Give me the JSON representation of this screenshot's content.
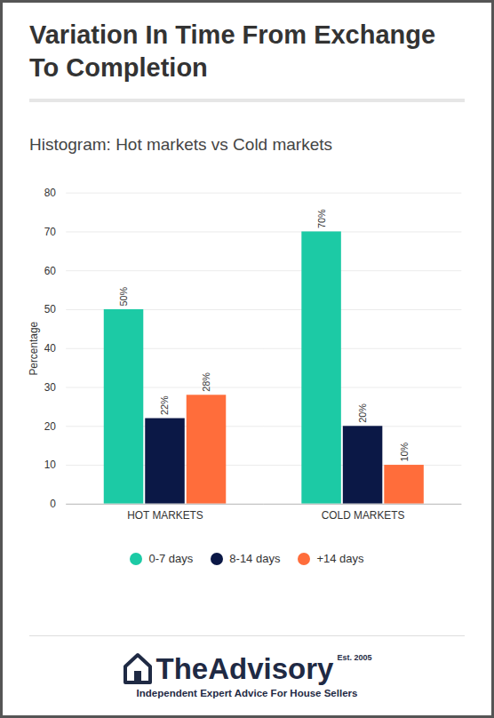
{
  "chart_data": {
    "type": "bar",
    "title": "Variation In Time From Exchange To Completion",
    "subtitle": "Histogram: Hot markets vs Cold markets",
    "y_label": "Percentage",
    "categories": [
      "HOT MARKETS",
      "COLD MARKETS"
    ],
    "series": [
      {
        "name": "0-7 days",
        "color": "#1ccaa5",
        "values": [
          50,
          70
        ],
        "value_labels": [
          "50%",
          "70%"
        ]
      },
      {
        "name": "8-14 days",
        "color": "#0b1846",
        "values": [
          22,
          20
        ],
        "value_labels": [
          "22%",
          "20%"
        ]
      },
      {
        "name": "+14 days",
        "color": "#ff6d3b",
        "values": [
          28,
          10
        ],
        "value_labels": [
          "28%",
          "10%"
        ]
      }
    ],
    "ylim": [
      0,
      80
    ],
    "yticks": [
      0,
      10,
      20,
      30,
      40,
      50,
      60,
      70,
      80
    ],
    "grid": true,
    "data_labels": true,
    "legend": "bottom",
    "annotations": [
      "TheAdvisory",
      "Est. 2005",
      "Independent Expert Advice For House Sellers"
    ]
  }
}
